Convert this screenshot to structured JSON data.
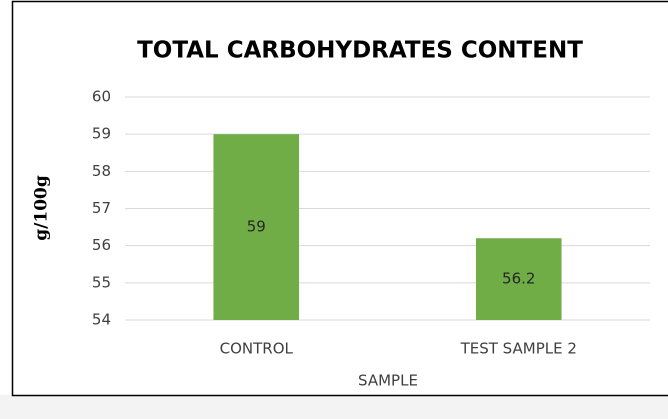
{
  "chart_data": {
    "type": "bar",
    "title": "TOTAL CARBOHYDRATES CONTENT",
    "categories": [
      "CONTROL",
      "TEST SAMPLE 2"
    ],
    "values": [
      59,
      56.2
    ],
    "color": "#70ad47",
    "xlabel": "SAMPLE",
    "ylabel": "g/100g",
    "ylim": [
      54,
      60
    ],
    "yticks": [
      54,
      55,
      56,
      57,
      58,
      59,
      60
    ],
    "grid": true,
    "data_labels": true
  }
}
